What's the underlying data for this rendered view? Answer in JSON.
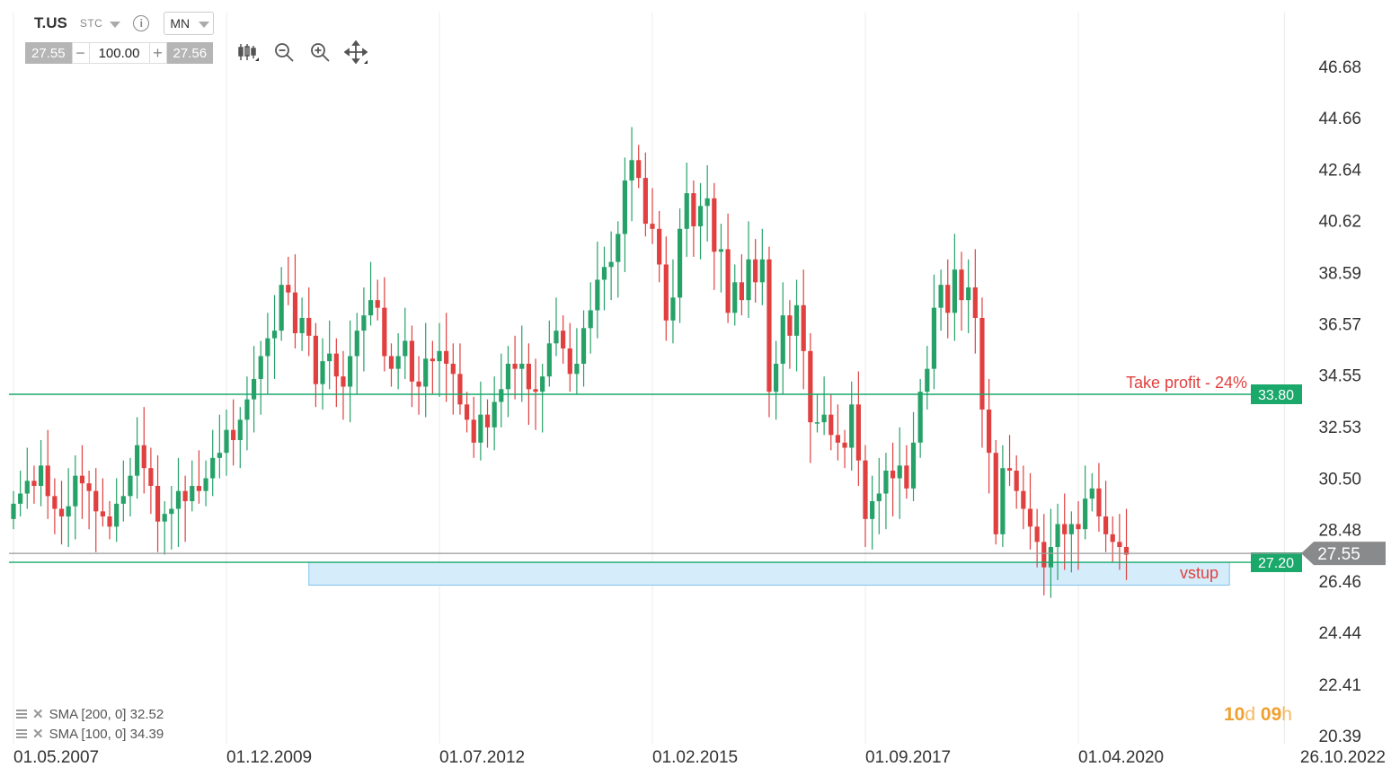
{
  "toolbar": {
    "symbol": "T.US",
    "type": "STC",
    "info": "i",
    "timeframe": "MN",
    "bid": "27.55",
    "ask": "27.56",
    "volume": "100.00",
    "minus": "−",
    "plus": "+"
  },
  "indicators": [
    {
      "label": "SMA [200, 0] 32.52"
    },
    {
      "label": "SMA [100, 0] 34.39"
    }
  ],
  "countdown": {
    "d_val": "10",
    "d_unit": "d",
    "h_val": "09",
    "h_unit": "h"
  },
  "colors": {
    "up": "#26a269",
    "down": "#e0403f",
    "level": "#1aa86b",
    "zone": "#d5ecfa",
    "zone_border": "#7fc4ec",
    "price_tag": "#888a8c"
  },
  "chart_data": {
    "type": "candlestick",
    "title": "",
    "x_ticks": [
      "01.05.2007",
      "01.12.2009",
      "01.07.2012",
      "01.02.2015",
      "01.09.2017",
      "01.04.2020",
      "26.10.2022"
    ],
    "y_ticks": [
      "46.68",
      "44.66",
      "42.64",
      "40.62",
      "38.59",
      "36.57",
      "34.55",
      "32.53",
      "30.50",
      "28.48",
      "26.46",
      "24.44",
      "22.41",
      "20.39"
    ],
    "ylim": [
      20.39,
      46.68
    ],
    "levels": [
      {
        "label": "Take profit - 24%",
        "tag": "33.80",
        "value": 33.8
      },
      {
        "label": "vstup",
        "tag": "27.20",
        "value": 27.2
      }
    ],
    "current_price": {
      "tag": "27.55",
      "value": 27.55
    },
    "zone": {
      "from_date": "01.12.2010",
      "to_date": "01.02.2022",
      "low": 26.3,
      "high": 27.2
    },
    "candles_close": [
      29.5,
      29.9,
      30.4,
      30.2,
      31.0,
      29.8,
      29.3,
      29.0,
      29.4,
      30.6,
      30.3,
      30.0,
      29.2,
      29.0,
      28.6,
      29.5,
      29.8,
      30.6,
      31.8,
      30.9,
      30.2,
      28.8,
      29.1,
      29.3,
      30.0,
      29.6,
      30.2,
      30.0,
      30.5,
      31.3,
      31.5,
      32.4,
      32.0,
      32.8,
      33.6,
      34.4,
      35.3,
      36.0,
      36.3,
      38.1,
      37.8,
      36.2,
      36.8,
      36.1,
      34.2,
      35.1,
      35.4,
      34.5,
      34.1,
      35.3,
      36.3,
      36.9,
      37.5,
      37.2,
      35.3,
      34.8,
      35.3,
      35.9,
      34.3,
      34.1,
      35.2,
      35.1,
      35.5,
      35.0,
      34.6,
      33.4,
      32.8,
      31.9,
      33.0,
      32.5,
      33.5,
      34.0,
      35.0,
      34.8,
      35.0,
      34.0,
      33.9,
      34.5,
      35.8,
      36.3,
      35.6,
      34.6,
      35.0,
      36.4,
      37.1,
      38.3,
      38.8,
      39.0,
      40.1,
      42.2,
      43.0,
      42.3,
      40.5,
      40.3,
      38.9,
      36.7,
      37.6,
      40.3,
      41.7,
      40.4,
      41.2,
      41.5,
      39.4,
      39.5,
      37.0,
      38.2,
      37.5,
      39.1,
      38.2,
      39.1,
      33.9,
      35.0,
      36.9,
      36.1,
      37.3,
      35.5,
      32.7,
      32.7,
      33.0,
      32.2,
      31.9,
      31.7,
      33.4,
      31.2,
      28.9,
      29.6,
      29.9,
      30.8,
      30.5,
      31.0,
      30.1,
      31.9,
      33.9,
      34.8,
      37.2,
      38.1,
      37.0,
      38.7,
      37.5,
      38.0,
      36.8,
      33.2,
      31.5,
      28.3,
      30.9,
      30.8,
      30.0,
      29.3,
      28.6,
      28.0,
      27.0,
      27.8,
      28.7,
      28.3,
      28.7,
      28.5,
      29.7,
      30.1,
      29.0,
      28.3,
      28.0,
      27.8,
      27.5
    ]
  }
}
